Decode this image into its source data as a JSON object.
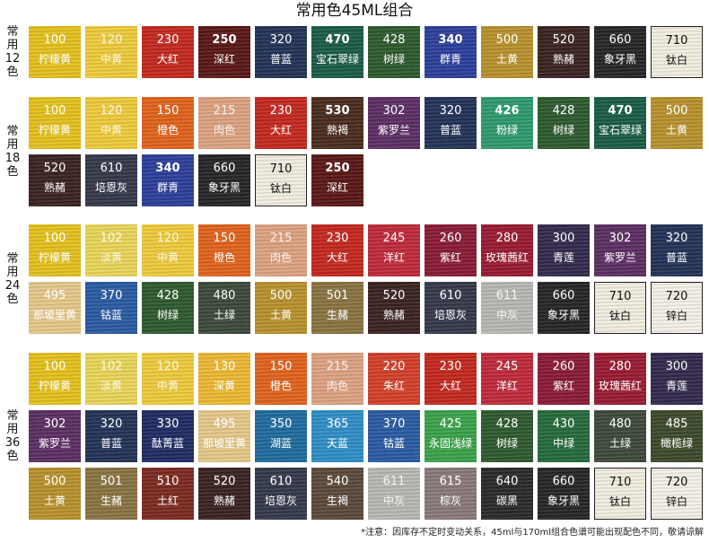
{
  "title": "常用色45ML组合",
  "footnote": "*注意：因库存不定时变动关系，45ml与170ml组合色谱可能出现配色不同，敬请谅解",
  "groups": [
    {
      "label": "常用12色",
      "colors": [
        {
          "num": "100",
          "name": "柠檬黄",
          "color": "#e6c21d"
        },
        {
          "num": "120",
          "name": "中黄",
          "color": "#f0cc3c"
        },
        {
          "num": "230",
          "name": "大红",
          "color": "#c5281e"
        },
        {
          "num": "250",
          "name": "深红",
          "color": "#5a1716"
        },
        {
          "num": "320",
          "name": "普蓝",
          "color": "#233357"
        },
        {
          "num": "470",
          "name": "宝石翠绿",
          "color": "#1a5c48"
        },
        {
          "num": "428",
          "name": "树绿",
          "color": "#2e5a2e"
        },
        {
          "num": "340",
          "name": "群青",
          "color": "#2c3f9c"
        },
        {
          "num": "500",
          "name": "土黄",
          "color": "#b9922d"
        },
        {
          "num": "520",
          "name": "熟赭",
          "color": "#3a2321"
        },
        {
          "num": "660",
          "name": "象牙黑",
          "color": "#262626"
        },
        {
          "num": "710",
          "name": "钛白",
          "color": "#f4efe2"
        }
      ]
    },
    {
      "label": "常用18色",
      "colors": [
        {
          "num": "100",
          "name": "柠檬黄",
          "color": "#e6c21d"
        },
        {
          "num": "120",
          "name": "中黄",
          "color": "#f0cc3c"
        },
        {
          "num": "150",
          "name": "橙色",
          "color": "#e2631c"
        },
        {
          "num": "215",
          "name": "肉色",
          "color": "#dfa382"
        },
        {
          "num": "230",
          "name": "大红",
          "color": "#c5281e"
        },
        {
          "num": "530",
          "name": "熟褐",
          "color": "#4a2c1e"
        },
        {
          "num": "302",
          "name": "紫罗兰",
          "color": "#5c2f63"
        },
        {
          "num": "320",
          "name": "普蓝",
          "color": "#233357"
        },
        {
          "num": "426",
          "name": "粉绿",
          "color": "#2e9b6e"
        },
        {
          "num": "428",
          "name": "树绿",
          "color": "#2e5a2e"
        },
        {
          "num": "470",
          "name": "宝石翠绿",
          "color": "#1a5c48"
        },
        {
          "num": "500",
          "name": "土黄",
          "color": "#b9922d"
        },
        {
          "num": "520",
          "name": "熟赭",
          "color": "#3a2321"
        },
        {
          "num": "610",
          "name": "培恩灰",
          "color": "#34394a"
        },
        {
          "num": "340",
          "name": "群青",
          "color": "#2c3f9c"
        },
        {
          "num": "660",
          "name": "象牙黑",
          "color": "#262626"
        },
        {
          "num": "710",
          "name": "钛白",
          "color": "#f4efe2"
        },
        {
          "num": "250",
          "name": "深红",
          "color": "#5a1716"
        }
      ]
    },
    {
      "label": "常用24色",
      "colors": [
        {
          "num": "100",
          "name": "柠檬黄",
          "color": "#e6c21d"
        },
        {
          "num": "102",
          "name": "淡黄",
          "color": "#ead758"
        },
        {
          "num": "120",
          "name": "中黄",
          "color": "#f0cc3c"
        },
        {
          "num": "150",
          "name": "橙色",
          "color": "#e2631c"
        },
        {
          "num": "215",
          "name": "肉色",
          "color": "#dfa382"
        },
        {
          "num": "230",
          "name": "大红",
          "color": "#c5281e"
        },
        {
          "num": "245",
          "name": "洋红",
          "color": "#c12a3b"
        },
        {
          "num": "260",
          "name": "紫红",
          "color": "#8a1b36"
        },
        {
          "num": "280",
          "name": "玫瑰茜红",
          "color": "#9a1a32"
        },
        {
          "num": "300",
          "name": "青莲",
          "color": "#332a4d"
        },
        {
          "num": "302",
          "name": "紫罗兰",
          "color": "#5c2f63"
        },
        {
          "num": "320",
          "name": "普蓝",
          "color": "#233357"
        },
        {
          "num": "495",
          "name": "那坡里黄",
          "color": "#e7c98a"
        },
        {
          "num": "370",
          "name": "钴蓝",
          "color": "#2a5ba3"
        },
        {
          "num": "428",
          "name": "树绿",
          "color": "#2e5a2e"
        },
        {
          "num": "480",
          "name": "土绿",
          "color": "#3d4a3a"
        },
        {
          "num": "500",
          "name": "土黄",
          "color": "#b9922d"
        },
        {
          "num": "501",
          "name": "生赭",
          "color": "#8a7442"
        },
        {
          "num": "520",
          "name": "熟赭",
          "color": "#3a2321"
        },
        {
          "num": "610",
          "name": "培恩灰",
          "color": "#34394a"
        },
        {
          "num": "611",
          "name": "中灰",
          "color": "#b9b9b4"
        },
        {
          "num": "660",
          "name": "象牙黑",
          "color": "#262626"
        },
        {
          "num": "710",
          "name": "钛白",
          "color": "#f4efe2"
        },
        {
          "num": "720",
          "name": "锌白",
          "color": "#f6f2e8"
        }
      ]
    },
    {
      "label": "常用36色",
      "colors": [
        {
          "num": "100",
          "name": "柠檬黄",
          "color": "#e6c21d"
        },
        {
          "num": "102",
          "name": "淡黄",
          "color": "#ead758"
        },
        {
          "num": "120",
          "name": "中黄",
          "color": "#f0cc3c"
        },
        {
          "num": "130",
          "name": "深黄",
          "color": "#eeb932"
        },
        {
          "num": "150",
          "name": "橙色",
          "color": "#e2631c"
        },
        {
          "num": "215",
          "name": "肉色",
          "color": "#dfa382"
        },
        {
          "num": "220",
          "name": "朱红",
          "color": "#d4402a"
        },
        {
          "num": "230",
          "name": "大红",
          "color": "#c5281e"
        },
        {
          "num": "245",
          "name": "洋红",
          "color": "#c12a3b"
        },
        {
          "num": "260",
          "name": "紫红",
          "color": "#8a1b36"
        },
        {
          "num": "280",
          "name": "玫瑰茜红",
          "color": "#9a1a32"
        },
        {
          "num": "300",
          "name": "青莲",
          "color": "#332a4d"
        },
        {
          "num": "302",
          "name": "紫罗兰",
          "color": "#5c2f63"
        },
        {
          "num": "320",
          "name": "普蓝",
          "color": "#233357"
        },
        {
          "num": "330",
          "name": "酞菁蓝",
          "color": "#1f2b63"
        },
        {
          "num": "495",
          "name": "那坡里黄",
          "color": "#e7c98a"
        },
        {
          "num": "350",
          "name": "湖蓝",
          "color": "#1f6c9f"
        },
        {
          "num": "365",
          "name": "天蓝",
          "color": "#2e8fc7"
        },
        {
          "num": "370",
          "name": "钴蓝",
          "color": "#2a5ba3"
        },
        {
          "num": "425",
          "name": "永固浅绿",
          "color": "#3aa34a"
        },
        {
          "num": "428",
          "name": "树绿",
          "color": "#2e5a2e"
        },
        {
          "num": "430",
          "name": "中绿",
          "color": "#256b3b"
        },
        {
          "num": "480",
          "name": "土绿",
          "color": "#3d4a3a"
        },
        {
          "num": "485",
          "name": "橄榄绿",
          "color": "#3d4a2a"
        },
        {
          "num": "500",
          "name": "土黄",
          "color": "#b9922d"
        },
        {
          "num": "501",
          "name": "生赭",
          "color": "#8a7442"
        },
        {
          "num": "510",
          "name": "土红",
          "color": "#7d2a20"
        },
        {
          "num": "520",
          "name": "熟赭",
          "color": "#3a2321"
        },
        {
          "num": "610",
          "name": "培恩灰",
          "color": "#34394a"
        },
        {
          "num": "540",
          "name": "生褐",
          "color": "#5c4a3a"
        },
        {
          "num": "611",
          "name": "中灰",
          "color": "#b9b9b4"
        },
        {
          "num": "615",
          "name": "棕灰",
          "color": "#8a7a7a"
        },
        {
          "num": "640",
          "name": "碳黑",
          "color": "#2a2a2a"
        },
        {
          "num": "660",
          "name": "象牙黑",
          "color": "#262626"
        },
        {
          "num": "710",
          "name": "钛白",
          "color": "#f4efe2"
        },
        {
          "num": "720",
          "name": "锌白",
          "color": "#f6f2e8"
        }
      ]
    }
  ]
}
